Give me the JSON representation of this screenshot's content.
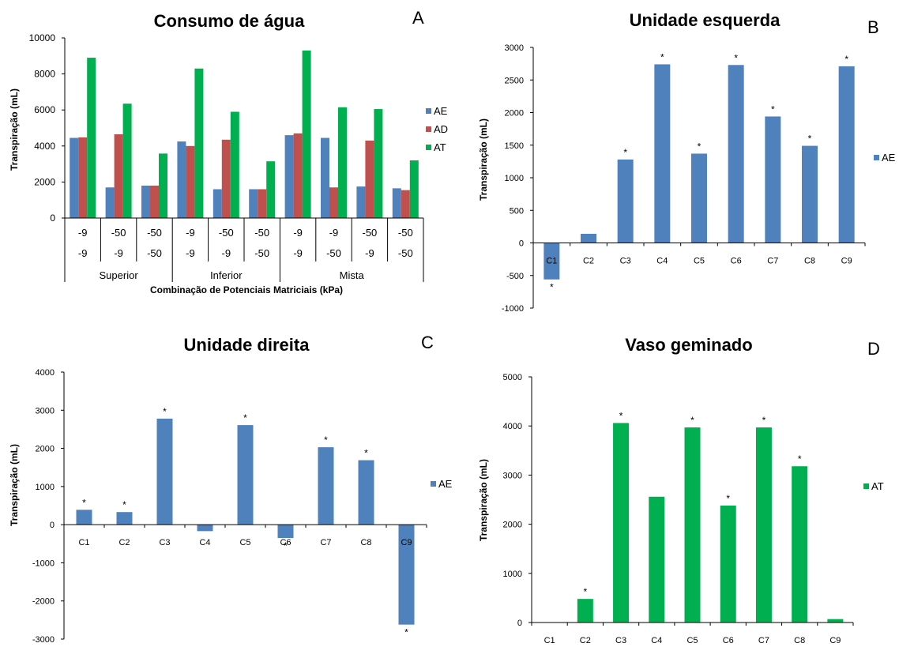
{
  "colors": {
    "AE": "#4F81BD",
    "AD": "#C0504D",
    "AT": "#00B050"
  },
  "chart_data": [
    {
      "id": "A",
      "type": "bar",
      "title": "Consumo de água",
      "panel_label": "A",
      "ylabel": "Transpiração (mL)",
      "xlabel": "Combinação de Potenciais Matriciais (kPa)",
      "ylim": [
        0,
        10000
      ],
      "yticks": [
        0,
        2000,
        4000,
        6000,
        8000,
        10000
      ],
      "categories_row1": [
        "-9",
        "-50",
        "-50",
        "-9",
        "-50",
        "-50",
        "-9",
        "-9",
        "-50",
        "-50"
      ],
      "categories_row2": [
        "-9",
        "-9",
        "-50",
        "-9",
        "-9",
        "-50",
        "-9",
        "-50",
        "-9",
        "-50"
      ],
      "groups": [
        {
          "label": "Superior",
          "start": 0,
          "end": 3
        },
        {
          "label": "Inferior",
          "start": 3,
          "end": 6
        },
        {
          "label": "Mista",
          "start": 6,
          "end": 10
        }
      ],
      "series": [
        {
          "name": "AE",
          "values": [
            4450,
            1700,
            1800,
            4250,
            1600,
            1600,
            4600,
            4450,
            1750,
            1650
          ]
        },
        {
          "name": "AD",
          "values": [
            4480,
            4650,
            1800,
            4000,
            4350,
            1600,
            4700,
            1700,
            4300,
            1550
          ]
        },
        {
          "name": "AT",
          "values": [
            8900,
            6350,
            3580,
            8300,
            5900,
            3150,
            9300,
            6150,
            6050,
            3200
          ]
        }
      ],
      "legend": [
        "AE",
        "AD",
        "AT"
      ],
      "legend_position": "right"
    },
    {
      "id": "B",
      "type": "bar",
      "title": "Unidade esquerda",
      "panel_label": "B",
      "ylabel": "Transpiração (mL)",
      "ylim": [
        -1000,
        3000
      ],
      "yticks": [
        -1000,
        -500,
        0,
        500,
        1000,
        1500,
        2000,
        2500,
        3000
      ],
      "categories": [
        "C1",
        "C2",
        "C3",
        "C4",
        "C5",
        "C6",
        "C7",
        "C8",
        "C9"
      ],
      "series": [
        {
          "name": "AE",
          "values": [
            -560,
            140,
            1280,
            2740,
            1370,
            2730,
            1940,
            1490,
            2710
          ]
        }
      ],
      "significance": [
        "*",
        "",
        "*",
        "*",
        "*",
        "*",
        "*",
        "*",
        "*"
      ],
      "legend": [
        "AE"
      ],
      "legend_position": "right"
    },
    {
      "id": "C",
      "type": "bar",
      "title": "Unidade direita",
      "panel_label": "C",
      "ylabel": "Transpiração (mL)",
      "ylim": [
        -3000,
        4000
      ],
      "yticks": [
        -3000,
        -2000,
        -1000,
        0,
        1000,
        2000,
        3000,
        4000
      ],
      "categories": [
        "C1",
        "C2",
        "C3",
        "C4",
        "C5",
        "C6",
        "C7",
        "C8",
        "C9"
      ],
      "series": [
        {
          "name": "AE",
          "values": [
            390,
            330,
            2780,
            -170,
            2610,
            -350,
            2030,
            1690,
            -2620
          ]
        }
      ],
      "significance": [
        "*",
        "*",
        "*",
        "",
        "*",
        "*",
        "*",
        "*",
        "*"
      ],
      "legend": [
        "AE"
      ],
      "legend_position": "right"
    },
    {
      "id": "D",
      "type": "bar",
      "title": "Vaso geminado",
      "panel_label": "D",
      "ylabel": "Transpiração (mL)",
      "ylim": [
        0,
        5000
      ],
      "yticks": [
        0,
        1000,
        2000,
        3000,
        4000,
        5000
      ],
      "categories": [
        "C1",
        "C2",
        "C3",
        "C4",
        "C5",
        "C6",
        "C7",
        "C8",
        "C9"
      ],
      "series": [
        {
          "name": "AT",
          "values": [
            0,
            480,
            4060,
            2560,
            3970,
            2380,
            3970,
            3180,
            70
          ]
        }
      ],
      "significance": [
        "",
        "*",
        "*",
        "",
        "*",
        "*",
        "*",
        "*",
        ""
      ],
      "legend": [
        "AT"
      ],
      "legend_position": "right"
    }
  ]
}
